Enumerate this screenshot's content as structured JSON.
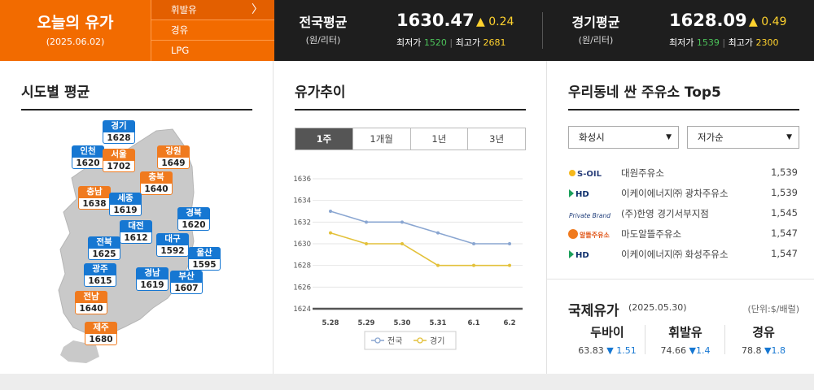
{
  "today": {
    "title": "오늘의 유가",
    "date": "(2025.06.02)"
  },
  "fuel_menu": [
    {
      "label": "휘발유",
      "selected": true
    },
    {
      "label": "경유",
      "selected": false
    },
    {
      "label": "LPG",
      "selected": false
    }
  ],
  "national": {
    "name": "전국평균",
    "unit": "(원/리터)",
    "price": "1630.47",
    "change": "▲ 0.24",
    "min_label": "최저가",
    "min": "1520",
    "max_label": "최고가",
    "max": "2681"
  },
  "gyeonggi": {
    "name": "경기평균",
    "unit": "(원/리터)",
    "price": "1628.09",
    "change": "▲ 0.49",
    "min_label": "최저가",
    "min": "1539",
    "max_label": "최고가",
    "max": "2300"
  },
  "regions_section": {
    "title": "시도별 평균",
    "regions": [
      {
        "name": "경기",
        "price": "1628",
        "color": "blue"
      },
      {
        "name": "인천",
        "price": "1620",
        "color": "blue"
      },
      {
        "name": "서울",
        "price": "1702",
        "color": "orange"
      },
      {
        "name": "강원",
        "price": "1649",
        "color": "orange"
      },
      {
        "name": "충북",
        "price": "1640",
        "color": "orange"
      },
      {
        "name": "충남",
        "price": "1638",
        "color": "orange"
      },
      {
        "name": "세종",
        "price": "1619",
        "color": "blue"
      },
      {
        "name": "대전",
        "price": "1612",
        "color": "blue"
      },
      {
        "name": "경북",
        "price": "1620",
        "color": "blue"
      },
      {
        "name": "전북",
        "price": "1625",
        "color": "blue"
      },
      {
        "name": "대구",
        "price": "1592",
        "color": "blue"
      },
      {
        "name": "울산",
        "price": "1595",
        "color": "blue"
      },
      {
        "name": "광주",
        "price": "1615",
        "color": "blue"
      },
      {
        "name": "경남",
        "price": "1619",
        "color": "blue"
      },
      {
        "name": "부산",
        "price": "1607",
        "color": "blue"
      },
      {
        "name": "전남",
        "price": "1640",
        "color": "orange"
      },
      {
        "name": "제주",
        "price": "1680",
        "color": "orange"
      }
    ]
  },
  "trend_section": {
    "title": "유가추이",
    "tabs": [
      {
        "label": "1주",
        "active": true
      },
      {
        "label": "1개월",
        "active": false
      },
      {
        "label": "1년",
        "active": false
      },
      {
        "label": "3년",
        "active": false
      }
    ]
  },
  "chart_data": {
    "type": "line",
    "x": [
      "5.28",
      "5.29",
      "5.30",
      "5.31",
      "6.1",
      "6.2"
    ],
    "ylim": [
      1624,
      1636
    ],
    "yticks": [
      1624,
      1626,
      1628,
      1630,
      1632,
      1634,
      1636
    ],
    "series": [
      {
        "name": "전국",
        "color": "#8aa6d1",
        "values": [
          1633,
          1632,
          1632,
          1631,
          1630,
          1630
        ]
      },
      {
        "name": "경기",
        "color": "#e3c13a",
        "values": [
          1631,
          1630,
          1630,
          1628,
          1628,
          1628
        ]
      }
    ],
    "grid": true,
    "legend": "bottom"
  },
  "top5_section": {
    "title": "우리동네 싼 주유소 Top5",
    "region_select": "화성시",
    "sort_select": "저가순",
    "stations": [
      {
        "brand": "S-OIL",
        "name": "대원주유소",
        "price": "1,539"
      },
      {
        "brand": "HD",
        "name": "이케이에너지㈜ 광차주유소",
        "price": "1,539"
      },
      {
        "brand": "Private Brand",
        "name": "(주)한영 경기서부지점",
        "price": "1,545"
      },
      {
        "brand": "알뜰주유소",
        "name": "마도알뜰주유소",
        "price": "1,547"
      },
      {
        "brand": "HD",
        "name": "이케이에너지㈜ 화성주유소",
        "price": "1,547"
      }
    ]
  },
  "intl_section": {
    "title": "국제유가",
    "date": "(2025.05.30)",
    "unit": "(단위:$/배럴)",
    "items": [
      {
        "name": "두바이",
        "price": "63.83",
        "change": "▼ 1.51"
      },
      {
        "name": "휘발유",
        "price": "74.66",
        "change": "▼1.4"
      },
      {
        "name": "경유",
        "price": "78.8",
        "change": "▼1.8"
      }
    ]
  }
}
